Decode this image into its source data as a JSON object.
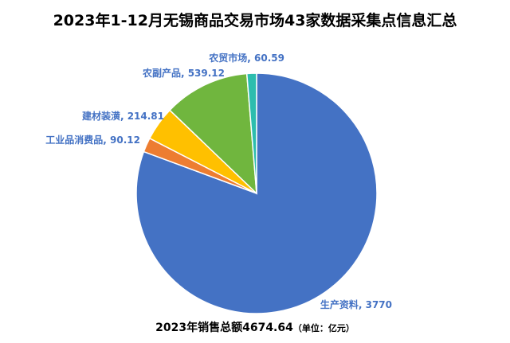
{
  "chart_data": {
    "type": "pie",
    "title": "2023年1-12月无锡商品交易市场43家数据采集点信息汇总",
    "categories": [
      "生产资料",
      "工业品消费品",
      "建材装潢",
      "农副产品",
      "农贸市场"
    ],
    "values": [
      3770,
      90.12,
      214.81,
      539.12,
      60.59
    ],
    "colors": [
      "#4472C4",
      "#ED7D31",
      "#FFC000",
      "#70B63E",
      "#2CBDAE"
    ],
    "label_color": "#4472C4",
    "footer": {
      "text": "2023年销售总额4674.64",
      "unit": "（单位：亿元）"
    }
  }
}
